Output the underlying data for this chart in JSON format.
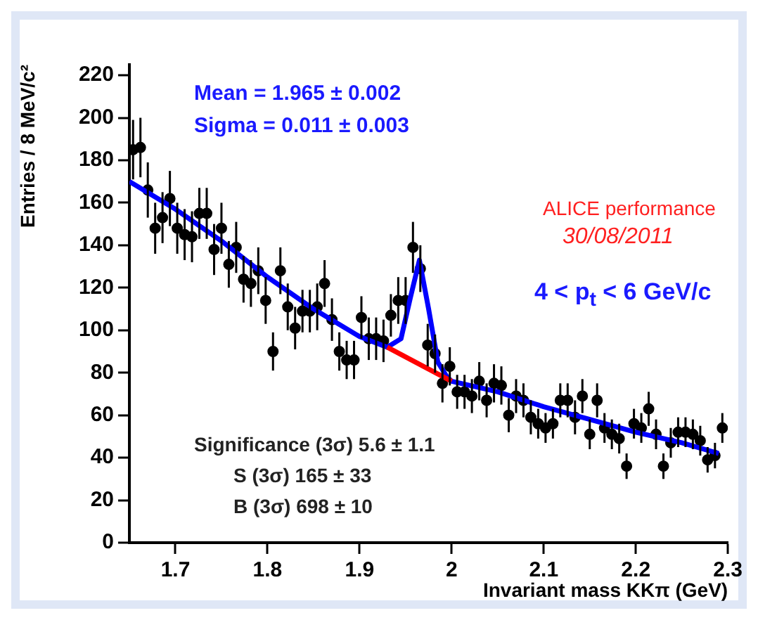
{
  "chart_data": {
    "type": "scatter",
    "xlabel": "Invariant mass KKπ (GeV)",
    "ylabel": "Entries / 8 MeV/c²",
    "annotations": [
      "Mean = 1.965 ± 0.002",
      "Sigma = 0.011 ± 0.003",
      "ALICE performance",
      "30/08/2011",
      "4 < p$_{t}$ < 6 GeV/c",
      "Significance (3σ) 5.6 ± 1.1",
      "S (3σ) 165 ± 33",
      "B (3σ) 698 ± 10"
    ],
    "xlim": [
      1.65,
      2.3
    ],
    "xticks": [
      1.7,
      1.8,
      1.9,
      2,
      2.1,
      2.2,
      2.3
    ],
    "ylim": [
      0,
      225
    ],
    "yticks": [
      0,
      20,
      40,
      60,
      80,
      100,
      120,
      140,
      160,
      180,
      200,
      220
    ],
    "grid": false,
    "legend": false,
    "marker": "circle",
    "series": [
      {
        "color": "#000000",
        "x": [
          1.654,
          1.662,
          1.67,
          1.678,
          1.686,
          1.694,
          1.702,
          1.71,
          1.718,
          1.726,
          1.734,
          1.742,
          1.75,
          1.758,
          1.766,
          1.774,
          1.782,
          1.79,
          1.798,
          1.806,
          1.814,
          1.822,
          1.83,
          1.838,
          1.846,
          1.854,
          1.862,
          1.87,
          1.878,
          1.886,
          1.894,
          1.902,
          1.91,
          1.918,
          1.926,
          1.934,
          1.942,
          1.95,
          1.958,
          1.966,
          1.974,
          1.982,
          1.99,
          1.998,
          2.006,
          2.014,
          2.022,
          2.03,
          2.038,
          2.046,
          2.054,
          2.062,
          2.07,
          2.078,
          2.086,
          2.094,
          2.102,
          2.11,
          2.118,
          2.126,
          2.134,
          2.142,
          2.15,
          2.158,
          2.166,
          2.174,
          2.182,
          2.19,
          2.198,
          2.206,
          2.214,
          2.222,
          2.23,
          2.238,
          2.246,
          2.254,
          2.262,
          2.27,
          2.278,
          2.286,
          2.294
        ],
        "values": [
          185,
          186,
          166,
          148,
          153,
          162,
          148,
          145,
          144,
          155,
          155,
          138,
          148,
          131,
          139,
          124,
          122,
          128,
          114,
          90,
          128,
          111,
          101,
          109,
          109,
          111,
          122,
          105,
          90,
          86,
          86,
          106,
          96,
          96,
          95,
          107,
          114,
          114,
          139,
          129,
          93,
          89,
          75,
          83,
          71,
          71,
          69,
          76,
          67,
          75,
          74,
          60,
          69,
          67,
          59,
          56,
          54,
          56,
          67,
          67,
          59,
          69,
          51,
          67,
          54,
          51,
          49,
          36,
          56,
          54,
          63,
          51,
          36,
          47,
          52,
          52,
          51,
          48,
          39,
          41,
          54
        ],
        "errors": [
          14,
          14,
          13,
          12,
          12,
          13,
          12,
          12,
          12,
          12,
          12,
          12,
          12,
          11,
          12,
          11,
          11,
          11,
          11,
          9,
          11,
          11,
          10,
          10,
          10,
          11,
          11,
          10,
          9,
          9,
          9,
          10,
          10,
          10,
          10,
          10,
          11,
          11,
          12,
          11,
          10,
          9,
          9,
          9,
          8,
          8,
          8,
          9,
          8,
          9,
          9,
          8,
          8,
          8,
          8,
          7,
          7,
          7,
          8,
          8,
          8,
          8,
          7,
          8,
          7,
          7,
          7,
          6,
          7,
          7,
          8,
          7,
          6,
          7,
          7,
          7,
          7,
          7,
          6,
          6,
          7
        ]
      },
      {
        "type": "line",
        "color": "#ff0000",
        "marker": "none",
        "x": [
          1.93,
          2.0
        ],
        "values": [
          92,
          76
        ]
      },
      {
        "type": "line",
        "color": "#0000ff",
        "marker": "none",
        "x": [
          1.65,
          1.7,
          1.75,
          1.8,
          1.85,
          1.9,
          1.93,
          1.945,
          1.955,
          1.965,
          1.975,
          1.985,
          1.995,
          2.0,
          2.05,
          2.1,
          2.15,
          2.2,
          2.25,
          2.29
        ],
        "values": [
          170,
          157,
          142,
          125,
          110,
          97,
          92,
          96,
          115,
          133,
          110,
          85,
          78,
          76,
          71,
          64,
          58,
          52,
          47,
          42
        ]
      }
    ]
  }
}
